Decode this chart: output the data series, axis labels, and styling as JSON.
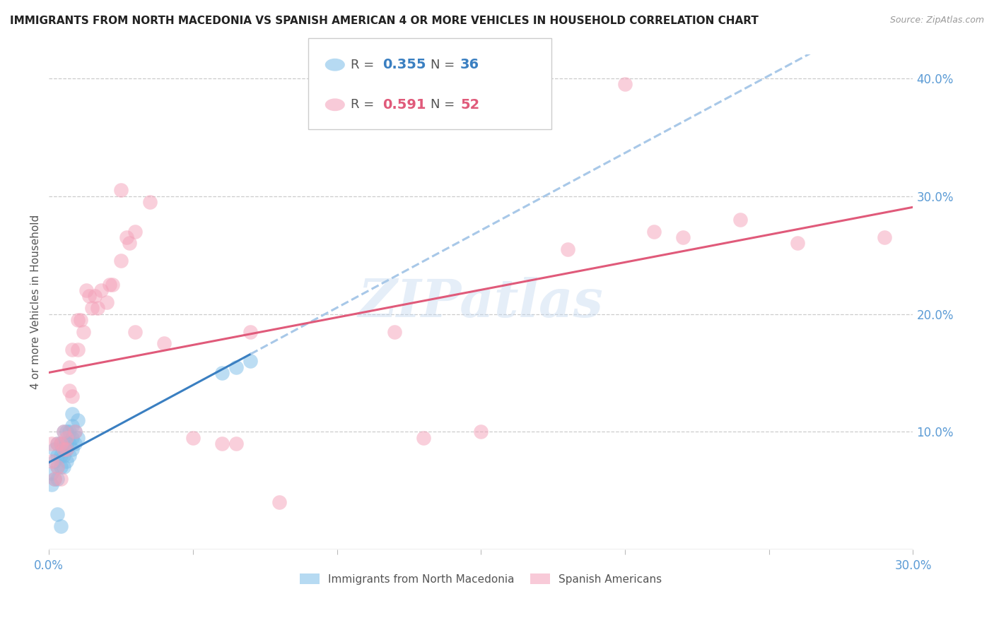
{
  "title": "IMMIGRANTS FROM NORTH MACEDONIA VS SPANISH AMERICAN 4 OR MORE VEHICLES IN HOUSEHOLD CORRELATION CHART",
  "source": "Source: ZipAtlas.com",
  "ylabel_left": "4 or more Vehicles in Household",
  "xlim": [
    0.0,
    0.3
  ],
  "ylim": [
    0.0,
    0.42
  ],
  "legend1_r": "R = ",
  "legend1_r_val": "0.355",
  "legend1_n": "N = ",
  "legend1_n_val": "36",
  "legend2_r": "R = ",
  "legend2_r_val": "0.591",
  "legend2_n": "N = ",
  "legend2_n_val": "52",
  "blue_color": "#7BBDE8",
  "pink_color": "#F4A0B8",
  "blue_line_color": "#3A7FC1",
  "pink_line_color": "#E05A7A",
  "dash_line_color": "#A8C8E8",
  "axis_tick_color": "#5B9BD5",
  "watermark": "ZIPatlas",
  "legend_bottom_blue": "Immigrants from North Macedonia",
  "legend_bottom_pink": "Spanish Americans",
  "blue_scatter_x": [
    0.001,
    0.001,
    0.002,
    0.002,
    0.002,
    0.003,
    0.003,
    0.003,
    0.003,
    0.004,
    0.004,
    0.004,
    0.005,
    0.005,
    0.005,
    0.005,
    0.006,
    0.006,
    0.006,
    0.006,
    0.007,
    0.007,
    0.007,
    0.008,
    0.008,
    0.008,
    0.008,
    0.009,
    0.009,
    0.01,
    0.01,
    0.06,
    0.065,
    0.07,
    0.003,
    0.004
  ],
  "blue_scatter_y": [
    0.055,
    0.065,
    0.06,
    0.075,
    0.085,
    0.06,
    0.07,
    0.08,
    0.09,
    0.07,
    0.08,
    0.09,
    0.07,
    0.08,
    0.09,
    0.1,
    0.075,
    0.085,
    0.09,
    0.1,
    0.08,
    0.09,
    0.1,
    0.085,
    0.095,
    0.105,
    0.115,
    0.09,
    0.1,
    0.095,
    0.11,
    0.15,
    0.155,
    0.16,
    0.03,
    0.02
  ],
  "pink_scatter_x": [
    0.001,
    0.001,
    0.002,
    0.003,
    0.003,
    0.004,
    0.004,
    0.005,
    0.005,
    0.006,
    0.006,
    0.007,
    0.007,
    0.008,
    0.008,
    0.009,
    0.01,
    0.01,
    0.011,
    0.012,
    0.013,
    0.014,
    0.015,
    0.016,
    0.017,
    0.018,
    0.02,
    0.021,
    0.022,
    0.025,
    0.025,
    0.027,
    0.028,
    0.03,
    0.03,
    0.035,
    0.04,
    0.05,
    0.06,
    0.065,
    0.07,
    0.08,
    0.12,
    0.13,
    0.15,
    0.18,
    0.2,
    0.21,
    0.22,
    0.24,
    0.26,
    0.29
  ],
  "pink_scatter_y": [
    0.075,
    0.09,
    0.06,
    0.07,
    0.09,
    0.06,
    0.09,
    0.085,
    0.1,
    0.085,
    0.095,
    0.135,
    0.155,
    0.13,
    0.17,
    0.1,
    0.17,
    0.195,
    0.195,
    0.185,
    0.22,
    0.215,
    0.205,
    0.215,
    0.205,
    0.22,
    0.21,
    0.225,
    0.225,
    0.305,
    0.245,
    0.265,
    0.26,
    0.185,
    0.27,
    0.295,
    0.175,
    0.095,
    0.09,
    0.09,
    0.185,
    0.04,
    0.185,
    0.095,
    0.1,
    0.255,
    0.395,
    0.27,
    0.265,
    0.28,
    0.26,
    0.265
  ]
}
